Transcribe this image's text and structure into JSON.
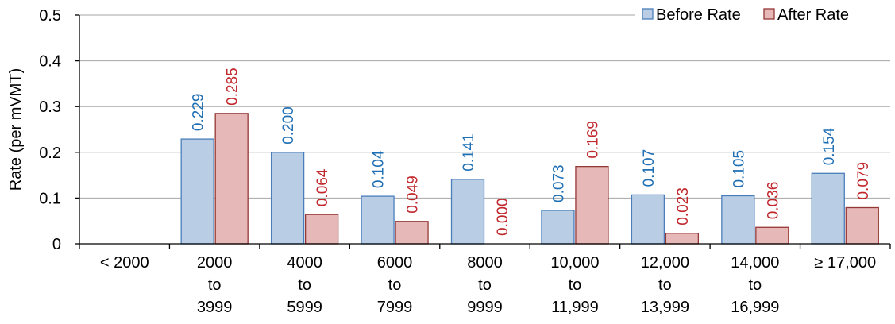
{
  "chart_data": {
    "type": "bar",
    "categories": [
      [
        "< 2000"
      ],
      [
        "2000",
        "to",
        "3999"
      ],
      [
        "4000",
        "to",
        "5999"
      ],
      [
        "6000",
        "to",
        "7999"
      ],
      [
        "8000",
        "to",
        "9999"
      ],
      [
        "10,000",
        "to",
        "11,999"
      ],
      [
        "12,000",
        "to",
        "13,999"
      ],
      [
        "14,000",
        "to",
        "16,999"
      ],
      [
        "≥ 17,000"
      ]
    ],
    "series": [
      {
        "name": "Before Rate",
        "values": [
          null,
          0.229,
          0.2,
          0.104,
          0.141,
          0.073,
          0.107,
          0.105,
          0.154
        ],
        "labels": [
          "",
          "0.229",
          "0.200",
          "0.104",
          "0.141",
          "0.073",
          "0.107",
          "0.105",
          "0.154"
        ],
        "fill": "#b9cde5",
        "stroke": "#4a7ebb",
        "label_color": "#1f6fb5"
      },
      {
        "name": "After Rate",
        "values": [
          null,
          0.285,
          0.064,
          0.049,
          0.0,
          0.169,
          0.023,
          0.036,
          0.079
        ],
        "labels": [
          "",
          "0.285",
          "0.064",
          "0.049",
          "0.000",
          "0.169",
          "0.023",
          "0.036",
          "0.079"
        ],
        "fill": "#e6b9b8",
        "stroke": "#953735",
        "label_color": "#c0282d"
      }
    ],
    "ylabel": "Rate (per mVMT)",
    "xlabel": "",
    "ylim": [
      0,
      0.5
    ],
    "yticks": [
      "0",
      "0.1",
      "0.2",
      "0.3",
      "0.4",
      "0.5"
    ],
    "grid": true,
    "legend_position": "top-right"
  }
}
